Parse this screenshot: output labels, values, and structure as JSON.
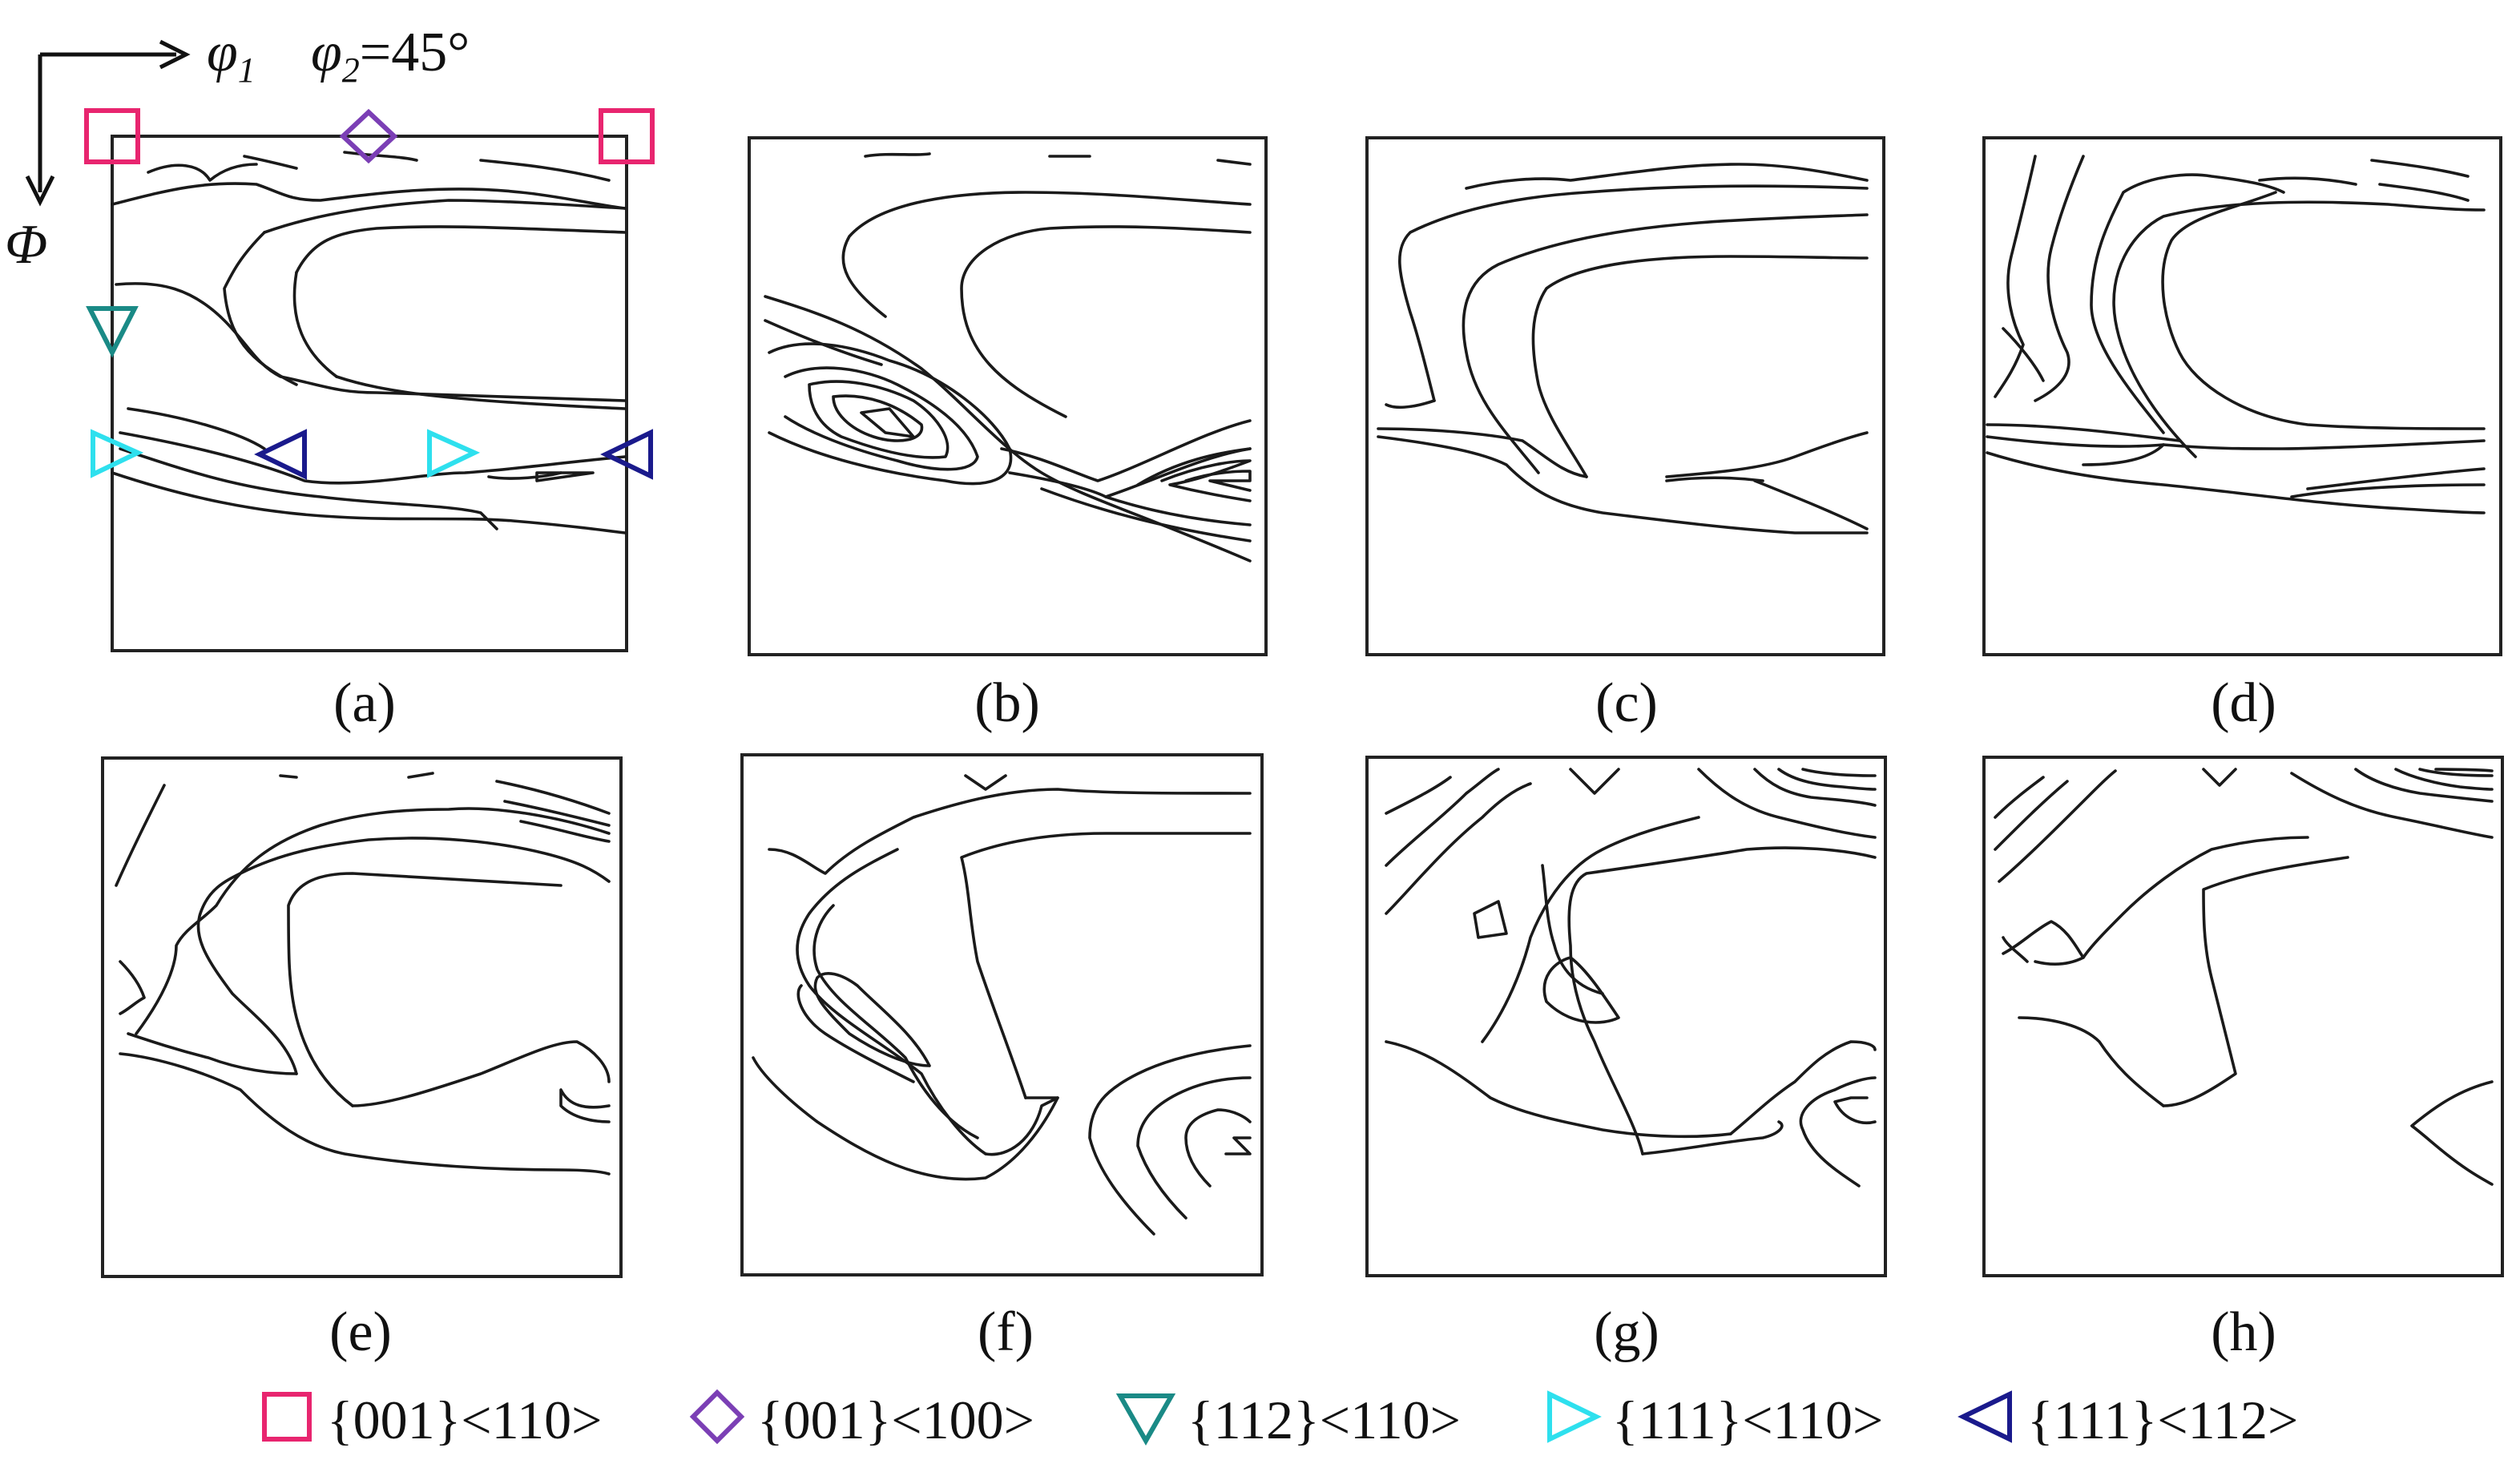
{
  "axes": {
    "phi1_symbol": "φ",
    "phi1_subscript": "1",
    "phi2_symbol": "φ",
    "phi2_subscript": "2",
    "phi2_value": "=45°",
    "Phi_symbol": "Φ"
  },
  "panels": [
    {
      "id": "a",
      "caption": "(a)"
    },
    {
      "id": "b",
      "caption": "(b)"
    },
    {
      "id": "c",
      "caption": "(c)"
    },
    {
      "id": "d",
      "caption": "(d)"
    },
    {
      "id": "e",
      "caption": "(e)"
    },
    {
      "id": "f",
      "caption": "(f)"
    },
    {
      "id": "g",
      "caption": "(g)"
    },
    {
      "id": "h",
      "caption": "(h)"
    }
  ],
  "legend": [
    {
      "symbol": "square",
      "label": "{001}<110>",
      "color": "#e8256f"
    },
    {
      "symbol": "diamond",
      "label": "{001}<100>",
      "color": "#7b3fb5"
    },
    {
      "symbol": "triangle-down",
      "label": "{112}<110>",
      "color": "#1a8a86"
    },
    {
      "symbol": "triangle-right",
      "label": "{111}<110>",
      "color": "#2ee0ee"
    },
    {
      "symbol": "triangle-left",
      "label": "{111}<112>",
      "color": "#1a1a8c"
    }
  ]
}
